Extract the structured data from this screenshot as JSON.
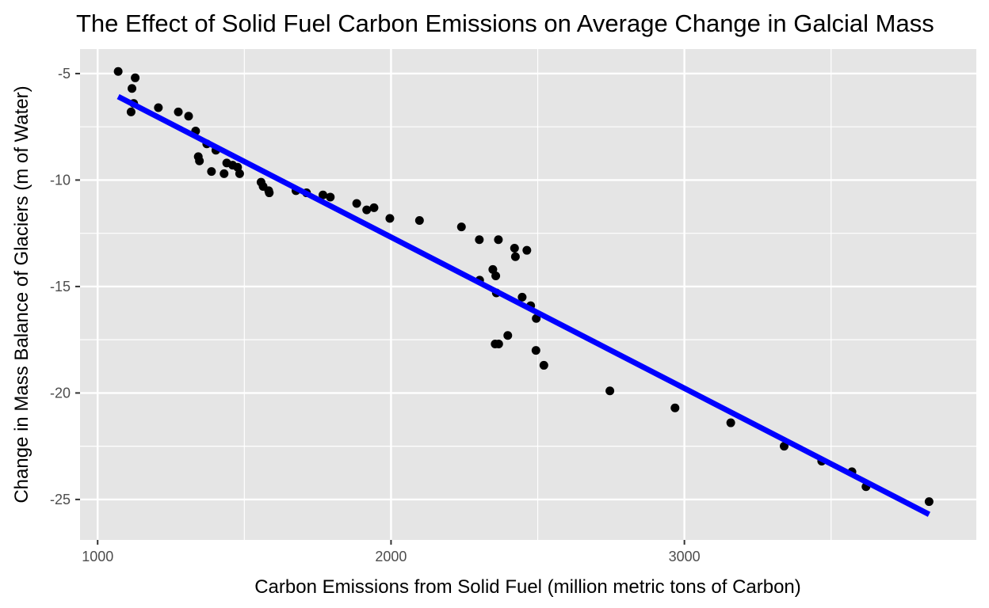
{
  "chart_data": {
    "type": "scatter",
    "title": "The Effect of Solid Fuel Carbon Emissions on Average Change in Galcial Mass",
    "xlabel": "Carbon Emissions from Solid Fuel (million metric tons of Carbon)",
    "ylabel": "Change in Mass Balance of Glaciers (m of Water)",
    "xlim": [
      940,
      3995
    ],
    "ylim": [
      -26.9,
      -3.85
    ],
    "x_ticks": [
      1000,
      2000,
      3000
    ],
    "x_tick_labels": [
      "1000",
      "2000",
      "3000"
    ],
    "y_ticks": [
      -5,
      -10,
      -15,
      -20,
      -25
    ],
    "y_tick_labels": [
      "-5",
      "-10",
      "-15",
      "-20",
      "-25"
    ],
    "grid": true,
    "panel_background": "#e5e5e5",
    "grid_color": "#ffffff",
    "point_color": "#000000",
    "line_color": "#0000ff",
    "series": [
      {
        "type": "scatter",
        "points": [
          [
            1070,
            -4.9
          ],
          [
            1128,
            -5.2
          ],
          [
            1117,
            -5.7
          ],
          [
            1114,
            -6.8
          ],
          [
            1123,
            -6.4
          ],
          [
            1207,
            -6.6
          ],
          [
            1275,
            -6.8
          ],
          [
            1310,
            -7.0
          ],
          [
            1334,
            -7.7
          ],
          [
            1372,
            -8.3
          ],
          [
            1343,
            -8.9
          ],
          [
            1347,
            -9.1
          ],
          [
            1403,
            -8.6
          ],
          [
            1388,
            -9.6
          ],
          [
            1440,
            -9.2
          ],
          [
            1431,
            -9.7
          ],
          [
            1460,
            -9.3
          ],
          [
            1477,
            -9.4
          ],
          [
            1484,
            -9.7
          ],
          [
            1557,
            -10.1
          ],
          [
            1564,
            -10.3
          ],
          [
            1583,
            -10.5
          ],
          [
            1585,
            -10.6
          ],
          [
            1676,
            -10.5
          ],
          [
            1712,
            -10.6
          ],
          [
            1768,
            -10.7
          ],
          [
            1793,
            -10.8
          ],
          [
            1883,
            -11.1
          ],
          [
            1917,
            -11.4
          ],
          [
            1942,
            -11.3
          ],
          [
            1996,
            -11.8
          ],
          [
            2097,
            -11.9
          ],
          [
            2240,
            -12.2
          ],
          [
            2301,
            -12.8
          ],
          [
            2366,
            -12.8
          ],
          [
            2421,
            -13.2
          ],
          [
            2463,
            -13.3
          ],
          [
            2424,
            -13.6
          ],
          [
            2347,
            -14.2
          ],
          [
            2357,
            -14.5
          ],
          [
            2302,
            -14.7
          ],
          [
            2359,
            -15.3
          ],
          [
            2447,
            -15.5
          ],
          [
            2476,
            -15.9
          ],
          [
            2495,
            -16.5
          ],
          [
            2398,
            -17.3
          ],
          [
            2355,
            -17.7
          ],
          [
            2367,
            -17.7
          ],
          [
            2494,
            -18.0
          ],
          [
            2521,
            -18.7
          ],
          [
            2746,
            -19.9
          ],
          [
            2968,
            -20.7
          ],
          [
            3158,
            -21.4
          ],
          [
            3340,
            -22.5
          ],
          [
            3468,
            -23.2
          ],
          [
            3571,
            -23.7
          ],
          [
            3619,
            -24.4
          ],
          [
            3834,
            -25.1
          ]
        ]
      },
      {
        "type": "line",
        "fit": "linear",
        "points": [
          [
            1070,
            -6.08
          ],
          [
            3834,
            -25.7
          ]
        ]
      }
    ]
  }
}
